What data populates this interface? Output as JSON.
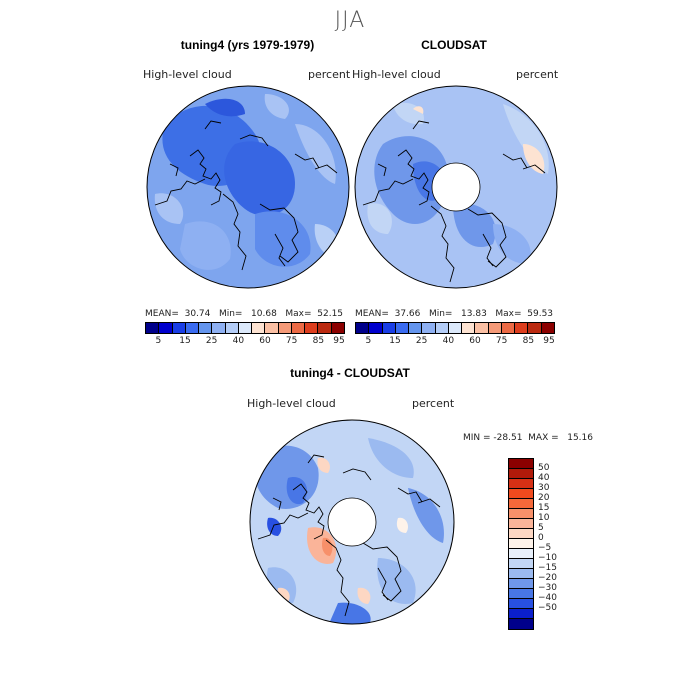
{
  "season": "JJA",
  "panels": [
    {
      "title": "tuning4 (yrs 1979-1979)",
      "var_label": "High-level cloud",
      "units": "percent",
      "stats": "MEAN=  30.74   Min=   10.68   Max=  52.15"
    },
    {
      "title": "CLOUDSAT",
      "var_label": "High-level cloud",
      "units": "percent",
      "stats": "MEAN=  37.66   Min=   13.83   Max=  59.53"
    },
    {
      "title": "tuning4 - CLOUDSAT",
      "var_label": "High-level cloud",
      "units": "percent",
      "stats": "MIN = -28.51  MAX =   15.16"
    }
  ],
  "colorbar_abs": {
    "colors": [
      "#00008b",
      "#0000cd",
      "#1a3ee6",
      "#3a6bf0",
      "#6495ed",
      "#8eb0f2",
      "#b4cdf7",
      "#dce9fb",
      "#fde3d2",
      "#fbc0a4",
      "#f59a78",
      "#ec6a45",
      "#dd3d1d",
      "#bb2a10",
      "#8b0000"
    ],
    "ticks": [
      "5",
      "15",
      "25",
      "40",
      "60",
      "75",
      "85",
      "95"
    ]
  },
  "colorbar_diff": {
    "colors": [
      "#8b0000",
      "#b01a0a",
      "#d63015",
      "#f04a1e",
      "#f5683a",
      "#f7906a",
      "#fab499",
      "#fdd7c3",
      "#fef3ea",
      "#e8f0fb",
      "#c2d6f5",
      "#9bbaf0",
      "#6f97ea",
      "#4876e6",
      "#2850e2",
      "#0b1fcc",
      "#00008b"
    ],
    "ticks": [
      "50",
      "40",
      "30",
      "20",
      "15",
      "10",
      "5",
      "0",
      "−5",
      "−10",
      "−15",
      "−20",
      "−30",
      "−40",
      "−50"
    ]
  }
}
